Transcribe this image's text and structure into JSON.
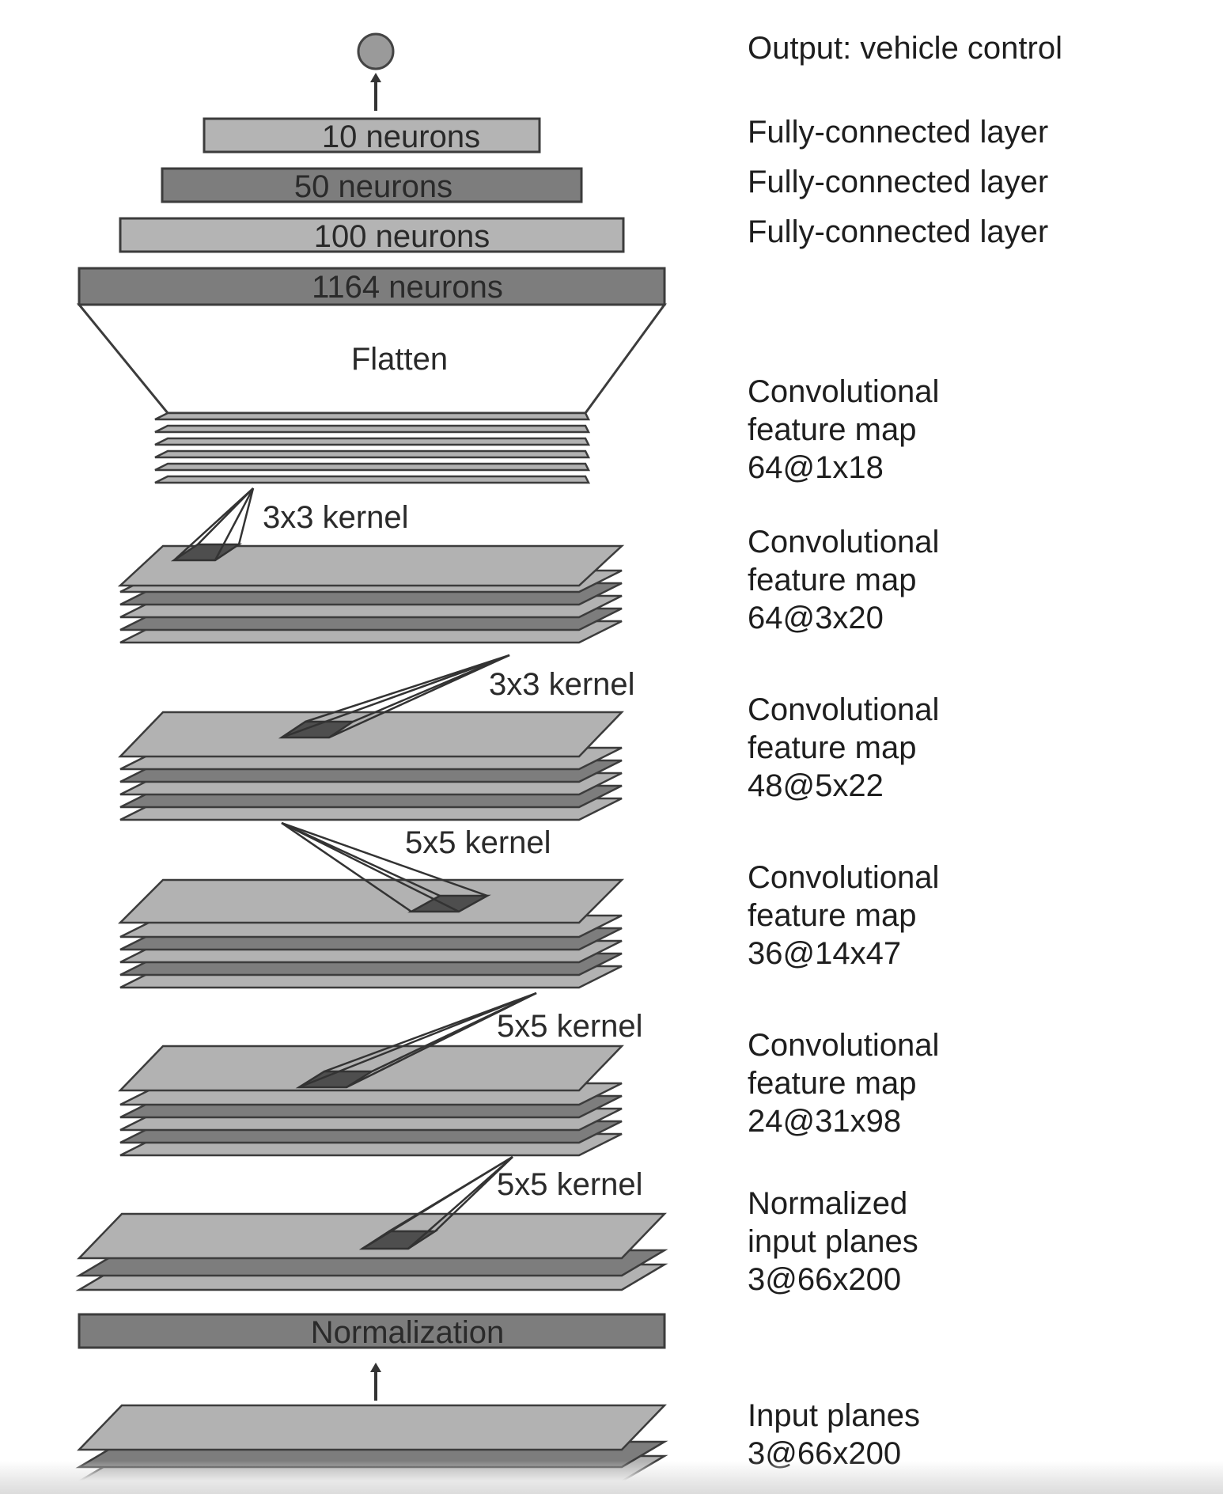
{
  "output_label": "Output: vehicle control",
  "fc_layers": [
    {
      "neurons": "10 neurons",
      "description": "Fully-connected layer"
    },
    {
      "neurons": "50 neurons",
      "description": "Fully-connected layer"
    },
    {
      "neurons": "100 neurons",
      "description": "Fully-connected layer"
    },
    {
      "neurons": "1164 neurons",
      "description": ""
    }
  ],
  "flatten_label": "Flatten",
  "feature_maps": [
    {
      "title": "Convolutional",
      "subtitle": "feature map",
      "size": "64@1x18"
    },
    {
      "title": "Convolutional",
      "subtitle": "feature map",
      "size": "64@3x20"
    },
    {
      "title": "Convolutional",
      "subtitle": "feature map",
      "size": "48@5x22"
    },
    {
      "title": "Convolutional",
      "subtitle": "feature map",
      "size": "36@14x47"
    },
    {
      "title": "Convolutional",
      "subtitle": "feature map",
      "size": "24@31x98"
    }
  ],
  "kernels": [
    "3x3 kernel",
    "3x3 kernel",
    "5x5 kernel",
    "5x5 kernel",
    "5x5 kernel"
  ],
  "normalized_planes": {
    "title": "Normalized",
    "subtitle": "input planes",
    "size": "3@66x200"
  },
  "normalization_label": "Normalization",
  "input_planes": {
    "title": "Input planes",
    "size": "3@66x200"
  },
  "colors": {
    "dark_layer": "#7d7d7d",
    "light_layer": "#b2b2b2",
    "outline": "#3c3c3c",
    "kernel_patch": "#4e4e4e"
  }
}
